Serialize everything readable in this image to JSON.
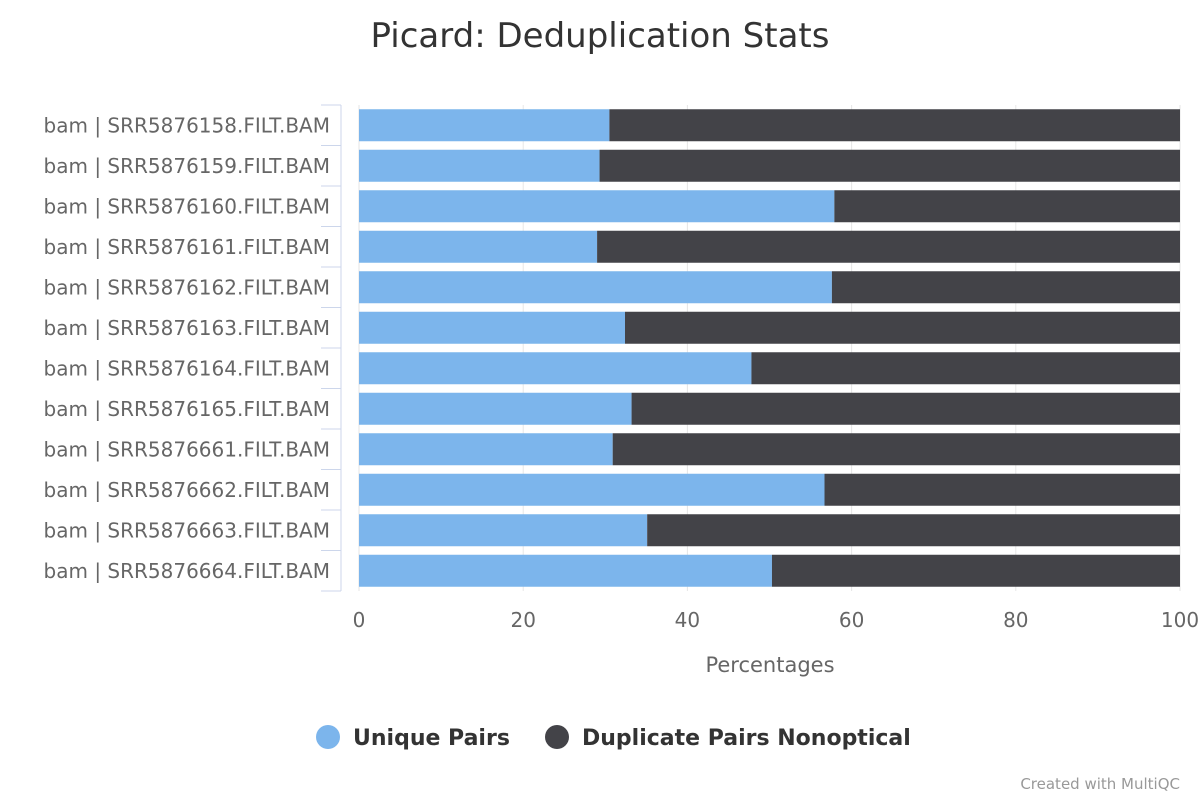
{
  "chart_data": {
    "type": "bar",
    "orientation": "horizontal",
    "stacked": true,
    "title": "Picard: Deduplication Stats",
    "xlabel": "Percentages",
    "ylabel": "",
    "xlim": [
      0,
      100
    ],
    "x_ticks": [
      "0",
      "20",
      "40",
      "60",
      "80",
      "100"
    ],
    "categories": [
      "bam | SRR5876158.FILT.BAM",
      "bam | SRR5876159.FILT.BAM",
      "bam | SRR5876160.FILT.BAM",
      "bam | SRR5876161.FILT.BAM",
      "bam | SRR5876162.FILT.BAM",
      "bam | SRR5876163.FILT.BAM",
      "bam | SRR5876164.FILT.BAM",
      "bam | SRR5876165.FILT.BAM",
      "bam | SRR5876661.FILT.BAM",
      "bam | SRR5876662.FILT.BAM",
      "bam | SRR5876663.FILT.BAM",
      "bam | SRR5876664.FILT.BAM"
    ],
    "series": [
      {
        "name": "Unique Pairs",
        "color": "#7cb5ec",
        "values": [
          30.5,
          29.3,
          57.9,
          29.0,
          57.6,
          32.4,
          47.8,
          33.2,
          30.9,
          56.7,
          35.1,
          50.3
        ]
      },
      {
        "name": "Duplicate Pairs Nonoptical",
        "color": "#434348",
        "values": [
          69.5,
          70.7,
          42.1,
          71.0,
          42.4,
          67.6,
          52.2,
          66.8,
          69.1,
          43.3,
          64.9,
          49.7
        ]
      }
    ],
    "grid": true,
    "legend_position": "bottom-center"
  },
  "credit": "Created with MultiQC"
}
